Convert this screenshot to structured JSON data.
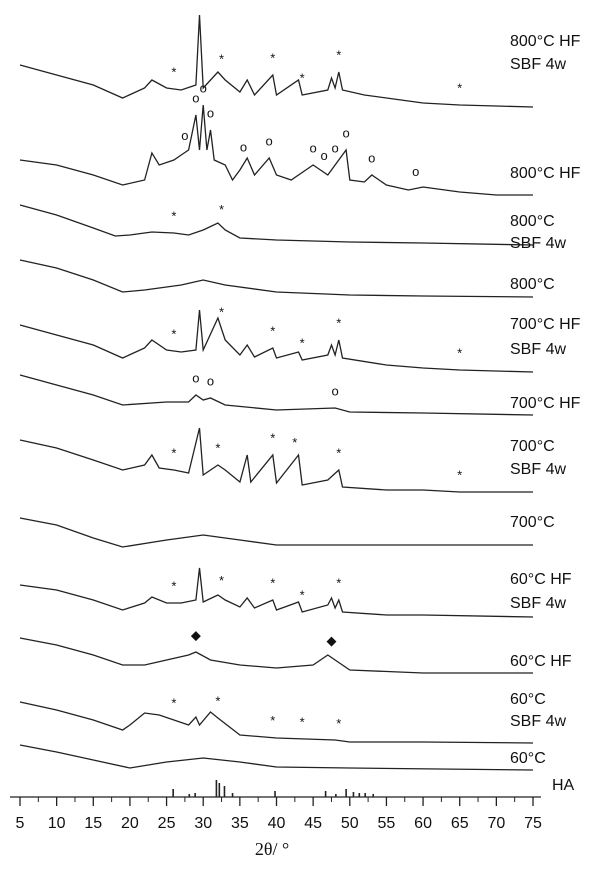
{
  "chart_data": {
    "type": "line",
    "x_label": "2θ/ °",
    "xlim": [
      5,
      75
    ],
    "xticks": [
      5,
      10,
      15,
      20,
      25,
      30,
      35,
      40,
      45,
      50,
      55,
      60,
      65,
      70,
      75
    ],
    "minor_xticks": [
      7.5,
      12.5,
      17.5,
      22.5,
      27.5,
      32.5,
      37.5,
      42.5,
      47.5,
      52.5,
      57.5,
      62.5,
      67.5,
      72.5
    ],
    "ylim": [
      0,
      797
    ],
    "color": "#222222",
    "series": [
      {
        "name_lines": [
          "800°C HF",
          "SBF 4w"
        ],
        "x": [
          5,
          10,
          15,
          19,
          22,
          23,
          25,
          27,
          29,
          29.5,
          30,
          32,
          33,
          35,
          36,
          37,
          39.5,
          40,
          43,
          43.5,
          47,
          47.5,
          48,
          48.5,
          49,
          52,
          57,
          60,
          65,
          70,
          75
        ],
        "values": [
          732,
          722,
          712,
          699,
          709,
          717,
          709,
          707,
          712,
          782,
          709,
          725,
          717,
          705,
          717,
          702,
          722,
          702,
          717,
          702,
          707,
          719,
          709,
          725,
          707,
          702,
          697,
          694,
          692,
          691,
          690
        ],
        "markers": {
          "symbol": "*",
          "x": [
            26,
            32.5,
            39.5,
            43.5,
            48.5,
            65
          ]
        }
      },
      {
        "name_lines": [
          "800°C HF"
        ],
        "x": [
          5,
          10,
          15,
          19,
          22,
          23,
          24,
          26,
          27,
          28,
          29,
          29.5,
          30,
          30.5,
          31,
          31.5,
          33,
          34,
          35,
          36,
          37,
          39,
          40,
          42,
          44,
          45,
          47,
          48,
          49.5,
          50,
          52,
          53,
          55,
          58,
          60,
          65,
          70,
          75
        ],
        "values": [
          637,
          632,
          622,
          612,
          617,
          644,
          632,
          637,
          642,
          647,
          682,
          647,
          692,
          647,
          667,
          637,
          632,
          617,
          627,
          639,
          622,
          639,
          622,
          617,
          627,
          632,
          622,
          632,
          647,
          617,
          615,
          622,
          612,
          607,
          610,
          605,
          602,
          602
        ],
        "markers": {
          "symbol": "o",
          "x": [
            27.5,
            29,
            30,
            31,
            35.5,
            39,
            45,
            46.5,
            48,
            49.5,
            53,
            59
          ]
        }
      },
      {
        "name_lines": [
          "800°C",
          "SBF 4w"
        ],
        "x": [
          5,
          10,
          15,
          18,
          20,
          23,
          26,
          28,
          30,
          32,
          33,
          35,
          40,
          50,
          60,
          75
        ],
        "values": [
          592,
          582,
          569,
          561,
          562,
          565,
          564,
          562,
          567,
          574,
          567,
          559,
          557,
          555,
          554,
          552
        ],
        "markers": {
          "symbol": "*",
          "x": [
            26,
            32.5
          ]
        }
      },
      {
        "name_lines": [
          "800°C"
        ],
        "x": [
          5,
          10,
          15,
          19,
          22,
          27,
          30,
          33,
          40,
          50,
          60,
          75
        ],
        "values": [
          537,
          529,
          517,
          505,
          507,
          512,
          517,
          512,
          505,
          502,
          501,
          500
        ]
      },
      {
        "name_lines": [
          "700°C HF",
          "SBF 4w"
        ],
        "x": [
          5,
          10,
          15,
          19,
          22,
          23,
          25,
          27,
          29,
          29.5,
          30,
          32,
          33,
          35,
          36,
          37,
          39.5,
          40,
          43,
          43.5,
          47,
          47.5,
          48,
          48.5,
          49,
          55,
          60,
          65,
          75
        ],
        "values": [
          472,
          462,
          452,
          439,
          449,
          457,
          447,
          445,
          447,
          487,
          447,
          479,
          457,
          442,
          452,
          440,
          449,
          439,
          445,
          437,
          442,
          452,
          442,
          457,
          439,
          432,
          429,
          427,
          425
        ],
        "markers": {
          "symbol": "*",
          "x": [
            26,
            32.5,
            39.5,
            43.5,
            48.5,
            65
          ]
        }
      },
      {
        "name_lines": [
          "700°C HF"
        ],
        "x": [
          5,
          10,
          15,
          19,
          25,
          28,
          29,
          30,
          31,
          33,
          40,
          48,
          50,
          60,
          75
        ],
        "values": [
          422,
          412,
          402,
          392,
          395,
          395,
          402,
          397,
          399,
          392,
          387,
          389,
          385,
          384,
          382
        ],
        "markers": {
          "symbol": "o",
          "x": [
            29,
            31,
            48
          ]
        }
      },
      {
        "name_lines": [
          "700°C",
          "SBF 4w"
        ],
        "x": [
          5,
          10,
          15,
          19,
          22,
          23,
          24,
          26,
          28,
          29.5,
          30,
          32,
          33,
          35,
          36,
          36.5,
          39.5,
          40,
          43,
          43.5,
          47,
          48.5,
          49,
          55,
          60,
          65,
          75
        ],
        "values": [
          357,
          349,
          337,
          327,
          332,
          342,
          329,
          327,
          324,
          369,
          322,
          332,
          327,
          315,
          342,
          315,
          342,
          314,
          342,
          312,
          317,
          327,
          310,
          307,
          307,
          305,
          305
        ],
        "markers": {
          "symbol": "*",
          "x": [
            26,
            32,
            39.5,
            42.5,
            48.5,
            65
          ]
        }
      },
      {
        "name_lines": [
          "700°C"
        ],
        "x": [
          5,
          10,
          15,
          19,
          25,
          30,
          35,
          40,
          50,
          75
        ],
        "values": [
          279,
          272,
          259,
          250,
          257,
          262,
          257,
          252,
          252,
          252
        ]
      },
      {
        "name_lines": [
          "60°C HF",
          "SBF 4w"
        ],
        "x": [
          5,
          10,
          15,
          19,
          22,
          23,
          25,
          27,
          29,
          29.5,
          30,
          32,
          33,
          35,
          36,
          37,
          39.5,
          40,
          43,
          43.5,
          47,
          47.5,
          48,
          48.5,
          49,
          55,
          60,
          75
        ],
        "values": [
          212,
          207,
          197,
          187,
          194,
          200,
          194,
          194,
          197,
          229,
          195,
          202,
          197,
          190,
          199,
          189,
          197,
          187,
          195,
          185,
          192,
          199,
          189,
          197,
          185,
          182,
          182,
          180
        ],
        "markers": {
          "symbol": "*",
          "x": [
            26,
            32.5,
            39.5,
            43.5,
            48.5
          ]
        }
      },
      {
        "name_lines": [
          "60°C HF"
        ],
        "x": [
          5,
          10,
          15,
          19,
          22,
          25,
          28,
          29,
          31,
          35,
          40,
          45,
          47,
          48,
          50,
          60,
          75
        ],
        "values": [
          159,
          152,
          142,
          132,
          132,
          137,
          142,
          145,
          137,
          132,
          129,
          132,
          142,
          137,
          127,
          124,
          124
        ],
        "markers": {
          "symbol": "◆",
          "x": [
            29,
            47.5
          ]
        }
      },
      {
        "name_lines": [
          "60°C",
          "SBF 4w"
        ],
        "x": [
          5,
          10,
          15,
          19,
          20,
          22,
          24,
          26,
          28,
          29,
          29.5,
          31,
          32,
          35,
          40,
          48,
          50,
          60,
          75
        ],
        "values": [
          95,
          87,
          77,
          67,
          72,
          84,
          82,
          77,
          72,
          80,
          72,
          85,
          79,
          62,
          59,
          57,
          55,
          55,
          54
        ],
        "markers": {
          "symbol": "*",
          "x": [
            26,
            32,
            39.5,
            43.5,
            48.5
          ]
        }
      },
      {
        "name_lines": [
          "60°C"
        ],
        "x": [
          5,
          10,
          15,
          20,
          25,
          30,
          35,
          40,
          50,
          75
        ],
        "values": [
          52,
          45,
          37,
          29,
          35,
          39,
          35,
          30,
          29,
          27
        ]
      }
    ],
    "reference": {
      "name": "HA",
      "x": [
        25.9,
        28.1,
        28.9,
        31.8,
        32.2,
        32.9,
        34.0,
        39.8,
        46.7,
        48.1,
        49.5,
        50.5,
        51.3,
        52.1,
        53.2
      ],
      "values": [
        8,
        3,
        4,
        17,
        14,
        11,
        4,
        6,
        6,
        3,
        8,
        5,
        4,
        4,
        3
      ]
    }
  }
}
